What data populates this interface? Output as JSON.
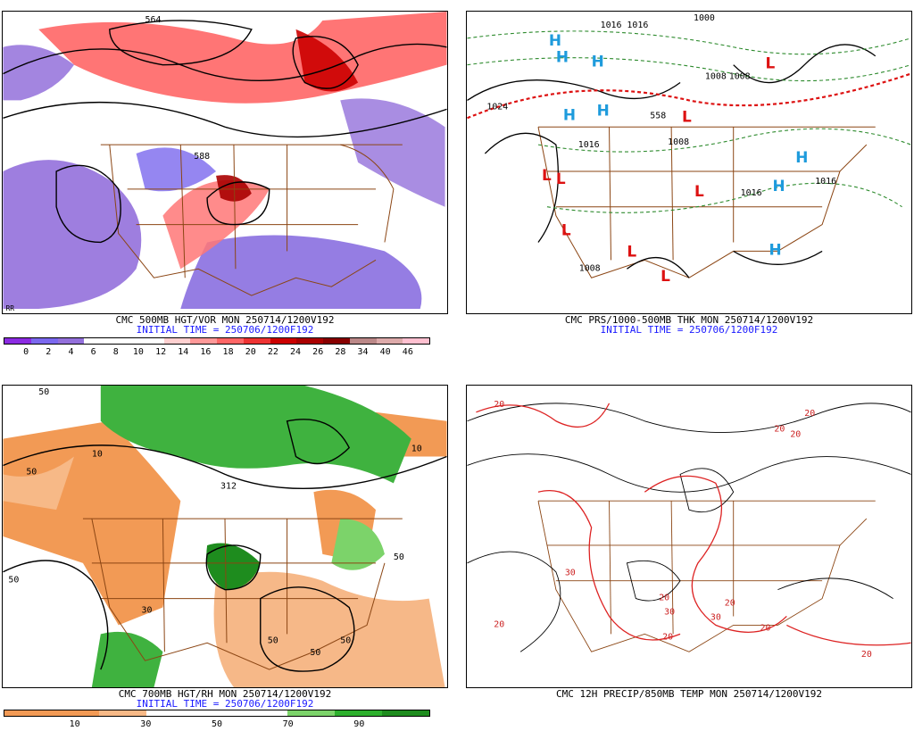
{
  "panels": {
    "p1": {
      "caption": "CMC 500MB HGT/VOR MON 250714/1200V192",
      "initial": "INITIAL TIME = 250706/1200F192",
      "corner_label": "RR",
      "contours": [
        "564",
        "588"
      ],
      "scale_colors": [
        "#8b2be2",
        "#7b68ee",
        "#9370db",
        "#ffffff",
        "#ffffff",
        "#ffffff",
        "#ffd0d0",
        "#ff9999",
        "#ff6666",
        "#ee3333",
        "#cc0000",
        "#aa0000",
        "#880000",
        "#bb8888",
        "#ddaaaa",
        "#ffc0d0"
      ],
      "scale_labels": [
        "0",
        "2",
        "4",
        "6",
        "8",
        "10",
        "12",
        "14",
        "16",
        "18",
        "20",
        "22",
        "24",
        "26",
        "28",
        "34",
        "40",
        "46"
      ]
    },
    "p2": {
      "caption": "CMC PRS/1000-500MB THK MON 250714/1200V192",
      "initial": "INITIAL TIME = 250706/1200F192",
      "isobars": [
        "1016",
        "1016",
        "1000",
        "1008",
        "1008",
        "1024",
        "1016",
        "1008",
        "1016",
        "1016",
        "1008",
        "558"
      ],
      "highs": [
        "H",
        "H",
        "H",
        "H",
        "H",
        "H",
        "H",
        "H"
      ],
      "lows": [
        "L",
        "L",
        "L",
        "L",
        "L",
        "L",
        "L",
        "L"
      ],
      "colors": {
        "high": "#1e9bdc",
        "low": "#dd1111"
      }
    },
    "p3": {
      "caption": "CMC 700MB HGT/RH MON 250714/1200V192",
      "initial": "INITIAL TIME = 250706/1200F192",
      "contours": [
        "312",
        "50",
        "50",
        "50",
        "50",
        "50",
        "10",
        "10",
        "50",
        "50",
        "30"
      ],
      "scale_colors": [
        "#f29a55",
        "#f29a55",
        "#f7b987",
        "#ffffff",
        "#ffffff",
        "#ffffff",
        "#7cd36a",
        "#2db02d",
        "#1e8c1e"
      ],
      "scale_labels": [
        "10",
        "30",
        "50",
        "70",
        "90"
      ]
    },
    "p4": {
      "caption": "CMC 12H PRECIP/850MB TEMP MON 250714/1200V192",
      "labels": [
        "20",
        "20",
        "30",
        "30",
        "30",
        "20",
        "20",
        "20",
        "20",
        "20",
        "20",
        "20",
        "20"
      ]
    }
  }
}
